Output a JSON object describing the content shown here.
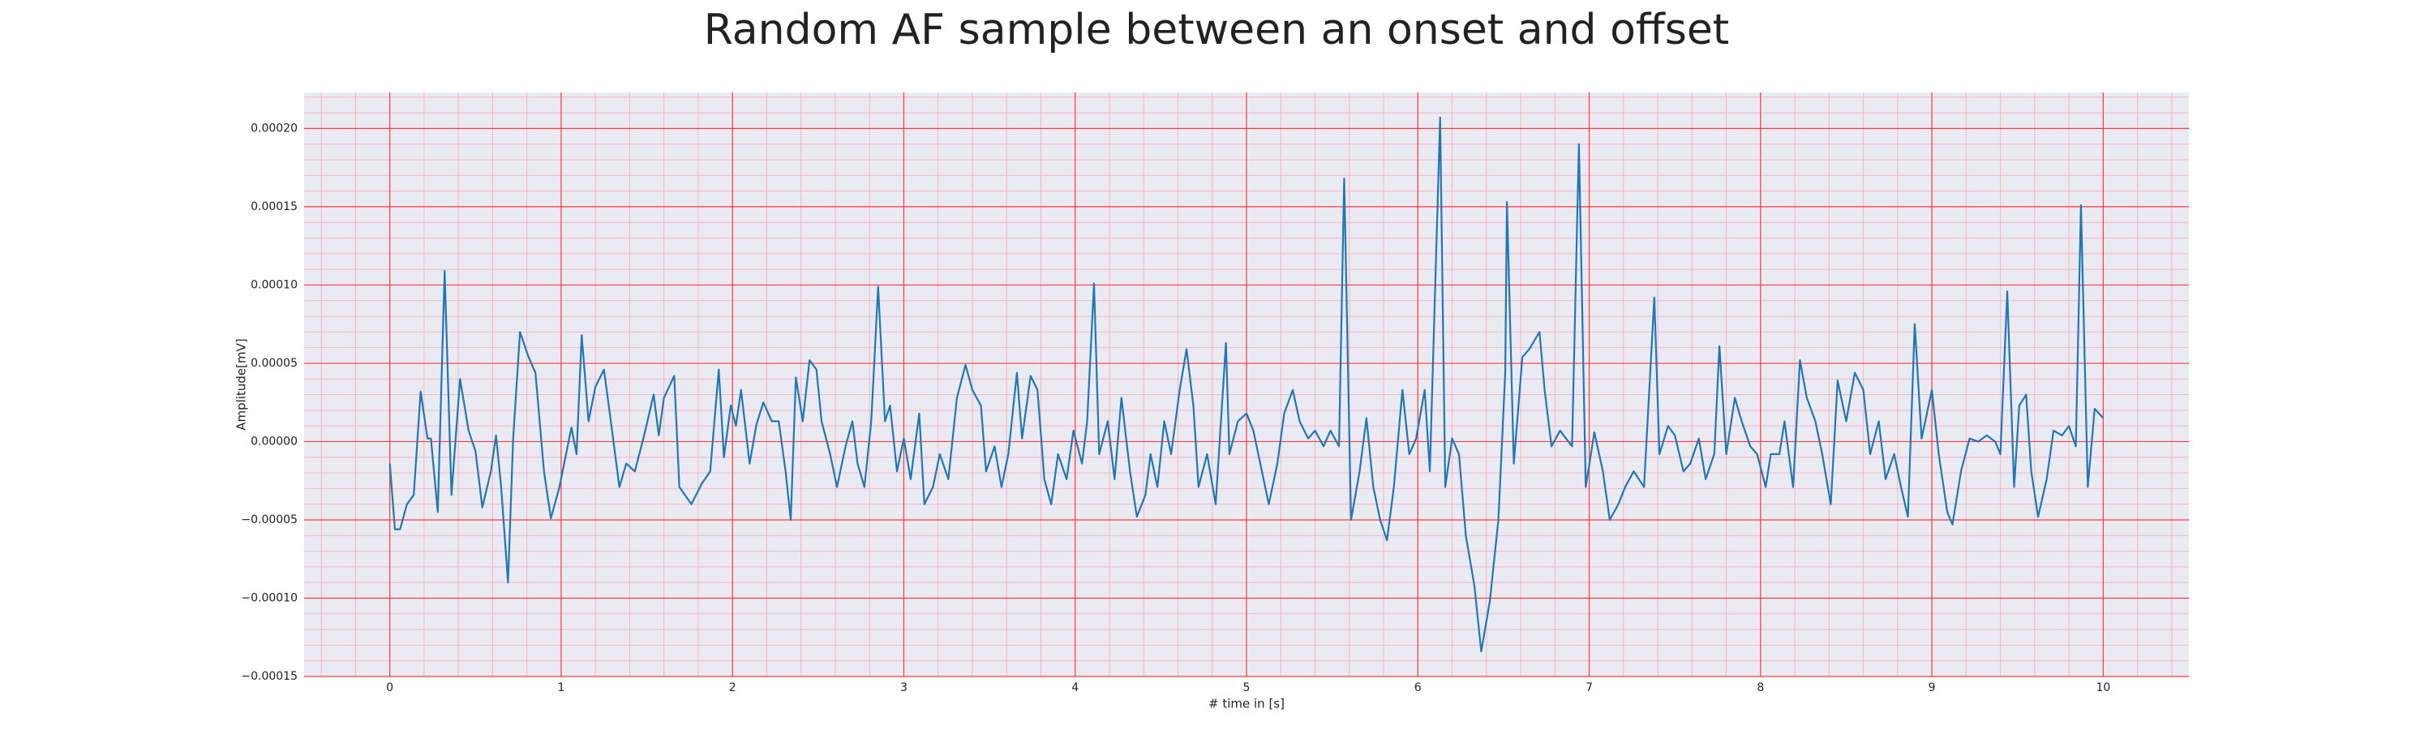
{
  "chart_data": {
    "type": "line",
    "title": "Random AF sample between an onset and offset",
    "xlabel": "# time in [s]",
    "ylabel": "Amplitude[mV]",
    "xlim": [
      -0.5,
      10.5
    ],
    "ylim": [
      -0.00015,
      0.000223
    ],
    "xticks": [
      0,
      1,
      2,
      3,
      4,
      5,
      6,
      7,
      8,
      9,
      10
    ],
    "yticks": [
      {
        "value": -0.00015,
        "label": "−0.00015"
      },
      {
        "value": -0.0001,
        "label": "−0.00010"
      },
      {
        "value": -5e-05,
        "label": "−0.00005"
      },
      {
        "value": 0,
        "label": "0.00000"
      },
      {
        "value": 5e-05,
        "label": "0.00005"
      },
      {
        "value": 0.0001,
        "label": "0.00010"
      },
      {
        "value": 0.00015,
        "label": "0.00015"
      },
      {
        "value": 0.0002,
        "label": "0.00020"
      }
    ],
    "grid": true,
    "grid_color": "#ff3b3b",
    "minor_grid": true,
    "minor_grid_color": "#f5b5c0",
    "background": "#eaeaf2",
    "x": [
      0.0,
      0.03,
      0.06,
      0.1,
      0.14,
      0.18,
      0.22,
      0.24,
      0.28,
      0.32,
      0.36,
      0.41,
      0.46,
      0.5,
      0.54,
      0.59,
      0.62,
      0.65,
      0.69,
      0.72,
      0.76,
      0.81,
      0.85,
      0.9,
      0.94,
      0.99,
      1.06,
      1.09,
      1.12,
      1.16,
      1.2,
      1.25,
      1.29,
      1.34,
      1.38,
      1.43,
      1.48,
      1.54,
      1.57,
      1.6,
      1.66,
      1.69,
      1.76,
      1.82,
      1.87,
      1.92,
      1.95,
      1.99,
      2.02,
      2.05,
      2.1,
      2.14,
      2.18,
      2.23,
      2.27,
      2.31,
      2.34,
      2.37,
      2.41,
      2.45,
      2.49,
      2.52,
      2.57,
      2.61,
      2.66,
      2.7,
      2.73,
      2.77,
      2.81,
      2.85,
      2.89,
      2.92,
      2.96,
      3.0,
      3.04,
      3.09,
      3.12,
      3.17,
      3.21,
      3.26,
      3.31,
      3.36,
      3.4,
      3.45,
      3.48,
      3.53,
      3.57,
      3.61,
      3.66,
      3.69,
      3.74,
      3.78,
      3.82,
      3.86,
      3.9,
      3.95,
      3.99,
      4.04,
      4.07,
      4.11,
      4.14,
      4.19,
      4.23,
      4.27,
      4.32,
      4.36,
      4.41,
      4.44,
      4.48,
      4.52,
      4.56,
      4.61,
      4.65,
      4.69,
      4.72,
      4.77,
      4.82,
      4.88,
      4.9,
      4.95,
      5.0,
      5.04,
      5.09,
      5.13,
      5.18,
      5.22,
      5.27,
      5.31,
      5.36,
      5.4,
      5.45,
      5.49,
      5.54,
      5.57,
      5.61,
      5.66,
      5.7,
      5.74,
      5.78,
      5.82,
      5.86,
      5.91,
      5.95,
      5.99,
      6.04,
      6.07,
      6.13,
      6.16,
      6.2,
      6.24,
      6.28,
      6.33,
      6.37,
      6.42,
      6.47,
      6.51,
      6.52,
      6.56,
      6.61,
      6.65,
      6.71,
      6.74,
      6.78,
      6.83,
      6.9,
      6.94,
      6.98,
      7.03,
      7.08,
      7.12,
      7.17,
      7.21,
      7.26,
      7.32,
      7.38,
      7.41,
      7.46,
      7.5,
      7.55,
      7.59,
      7.64,
      7.68,
      7.73,
      7.76,
      7.8,
      7.85,
      7.89,
      7.94,
      7.98,
      8.03,
      8.06,
      8.11,
      8.14,
      8.19,
      8.23,
      8.27,
      8.32,
      8.36,
      8.41,
      8.45,
      8.5,
      8.55,
      8.6,
      8.64,
      8.69,
      8.73,
      8.78,
      8.82,
      8.86,
      8.9,
      8.94,
      9.0,
      9.04,
      9.09,
      9.12,
      9.17,
      9.22,
      9.27,
      9.32,
      9.37,
      9.4,
      9.44,
      9.48,
      9.51,
      9.55,
      9.58,
      9.62,
      9.67,
      9.71,
      9.76,
      9.8,
      9.84,
      9.87,
      9.91,
      9.95,
      10.0
    ],
    "series": [
      {
        "color": "#1f77b4",
        "values": [
          -1.4e-05,
          -5.6e-05,
          -5.6e-05,
          -4e-05,
          -3.4e-05,
          3.2e-05,
          2e-06,
          2e-06,
          -4.5e-05,
          0.000109,
          -3.4e-05,
          4e-05,
          7e-06,
          -6e-06,
          -4.2e-05,
          -1.9e-05,
          4e-06,
          -2.9e-05,
          -9e-05,
          2e-06,
          7e-05,
          5.4e-05,
          4.4e-05,
          -1.9e-05,
          -4.9e-05,
          -2.9e-05,
          9e-06,
          -8e-06,
          6.8e-05,
          1.3e-05,
          3.5e-05,
          4.6e-05,
          1.3e-05,
          -2.9e-05,
          -1.4e-05,
          -1.9e-05,
          2e-06,
          3e-05,
          4e-06,
          2.8e-05,
          4.2e-05,
          -2.9e-05,
          -4e-05,
          -2.7e-05,
          -1.9e-05,
          4.6e-05,
          -1e-05,
          2.3e-05,
          1e-05,
          3.3e-05,
          -1.4e-05,
          1.1e-05,
          2.5e-05,
          1.3e-05,
          1.3e-05,
          -1.9e-05,
          -5e-05,
          4.1e-05,
          1.3e-05,
          5.2e-05,
          4.6e-05,
          1.3e-05,
          -8e-06,
          -2.9e-05,
          -3e-06,
          1.3e-05,
          -1.4e-05,
          -2.9e-05,
          1.3e-05,
          9.9e-05,
          1.3e-05,
          2.3e-05,
          -1.9e-05,
          2e-06,
          -2.4e-05,
          1.8e-05,
          -4e-05,
          -2.9e-05,
          -8e-06,
          -2.4e-05,
          2.8e-05,
          4.9e-05,
          3.3e-05,
          2.3e-05,
          -1.9e-05,
          -3e-06,
          -2.9e-05,
          -8e-06,
          4.4e-05,
          2e-06,
          4.2e-05,
          3.3e-05,
          -2.4e-05,
          -4e-05,
          -8e-06,
          -2.4e-05,
          7e-06,
          -1.4e-05,
          1.3e-05,
          0.000101,
          -8e-06,
          1.3e-05,
          -2.4e-05,
          2.8e-05,
          -1.9e-05,
          -4.8e-05,
          -3.4e-05,
          -8e-06,
          -2.9e-05,
          1.3e-05,
          -8e-06,
          3.3e-05,
          5.9e-05,
          2.3e-05,
          -2.9e-05,
          -8e-06,
          -4e-05,
          6.3e-05,
          -8e-06,
          1.3e-05,
          1.8e-05,
          7e-06,
          -1.9e-05,
          -4e-05,
          -1.4e-05,
          1.8e-05,
          3.3e-05,
          1.3e-05,
          2e-06,
          7e-06,
          -3e-06,
          7e-06,
          -3e-06,
          0.000168,
          -5e-05,
          -1.9e-05,
          1.5e-05,
          -2.9e-05,
          -5e-05,
          -6.3e-05,
          -2.9e-05,
          3.3e-05,
          -8e-06,
          2e-06,
          3.3e-05,
          -1.9e-05,
          0.000207,
          -2.9e-05,
          2e-06,
          -8e-06,
          -6e-05,
          -9.2e-05,
          -0.000134,
          -0.000102,
          -5e-05,
          4.4e-05,
          0.000153,
          -1.4e-05,
          5.4e-05,
          5.9e-05,
          7e-05,
          3.3e-05,
          -3e-06,
          7e-06,
          -3e-06,
          0.00019,
          -2.9e-05,
          6e-06,
          -1.9e-05,
          -5e-05,
          -4e-05,
          -2.9e-05,
          -1.9e-05,
          -2.9e-05,
          9.2e-05,
          -8e-06,
          1e-05,
          4e-06,
          -1.9e-05,
          -1.4e-05,
          2e-06,
          -2.4e-05,
          -8e-06,
          6.1e-05,
          -8e-06,
          2.8e-05,
          1.3e-05,
          -3e-06,
          -8e-06,
          -2.9e-05,
          -8e-06,
          -8e-06,
          1.3e-05,
          -2.9e-05,
          5.2e-05,
          2.8e-05,
          1.3e-05,
          -8e-06,
          -4e-05,
          3.9e-05,
          1.3e-05,
          4.4e-05,
          3.3e-05,
          -8e-06,
          1.3e-05,
          -2.4e-05,
          -8e-06,
          -2.9e-05,
          -4.8e-05,
          7.5e-05,
          2e-06,
          3.3e-05,
          -8e-06,
          -4.5e-05,
          -5.3e-05,
          -1.9e-05,
          2e-06,
          0,
          4e-06,
          0,
          -8e-06,
          9.6e-05,
          -2.9e-05,
          2.3e-05,
          3e-05,
          -1.9e-05,
          -4.8e-05,
          -2.4e-05,
          7e-06,
          4e-06,
          1e-05,
          -3e-06,
          0.000151,
          -2.9e-05,
          2.1e-05,
          1.5e-05
        ]
      }
    ]
  }
}
